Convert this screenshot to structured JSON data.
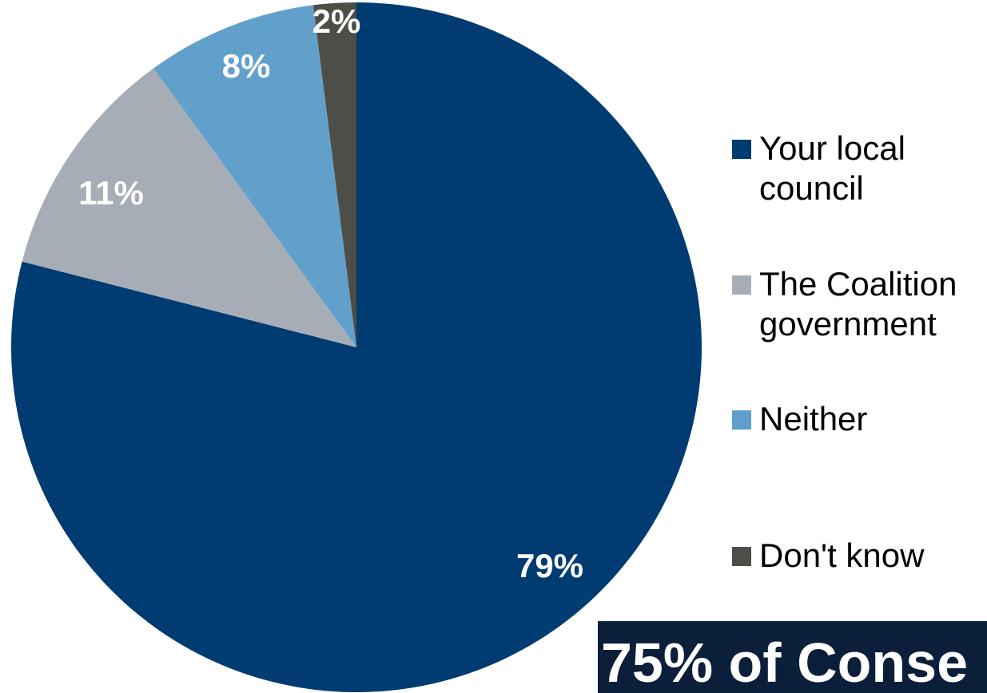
{
  "chart_data": {
    "type": "pie",
    "categories": [
      "Your local council",
      "The Coalition government",
      "Neither",
      "Don't know"
    ],
    "values": [
      79,
      11,
      8,
      2
    ],
    "value_labels": [
      "79%",
      "11%",
      "8%",
      "2%"
    ],
    "colors": [
      "#003b71",
      "#a6adb6",
      "#62a0cc",
      "#4e4e48"
    ],
    "legend_position": "right",
    "title": "",
    "start_angle_deg": 0,
    "direction": "clockwise"
  },
  "banner": {
    "text": "75% of Conse",
    "background": "#0b1e3a"
  }
}
